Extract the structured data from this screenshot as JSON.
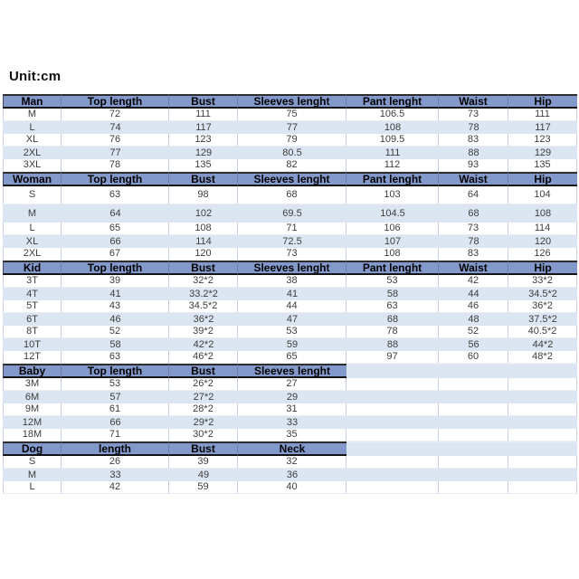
{
  "page": {
    "unit_label": "Unit:cm"
  },
  "colors": {
    "header_bg": "#8399cb",
    "stripe_bg": "#dbe6f2",
    "cell_border": "#c6cfdf",
    "header_text": "#000000",
    "data_text": "#3d3d3d"
  },
  "chart_data": [
    {
      "type": "table",
      "name": "Man",
      "columns": [
        "Man",
        "Top length",
        "Bust",
        "Sleeves lenght",
        "Pant lenght",
        "Waist",
        "Hip"
      ],
      "rows": [
        [
          "M",
          "72",
          "111",
          "75",
          "106.5",
          "73",
          "111"
        ],
        [
          "L",
          "74",
          "117",
          "77",
          "108",
          "78",
          "117"
        ],
        [
          "XL",
          "76",
          "123",
          "79",
          "109.5",
          "83",
          "123"
        ],
        [
          "2XL",
          "77",
          "129",
          "80.5",
          "111",
          "88",
          "129"
        ],
        [
          "3XL",
          "78",
          "135",
          "82",
          "112",
          "93",
          "135"
        ]
      ]
    },
    {
      "type": "table",
      "name": "Woman",
      "columns": [
        "Woman",
        "Top length",
        "Bust",
        "Sleeves lenght",
        "Pant lenght",
        "Waist",
        "Hip"
      ],
      "rows": [
        [
          "S",
          "63",
          "98",
          "68",
          "103",
          "64",
          "104"
        ],
        [
          "M",
          "64",
          "102",
          "69.5",
          "104.5",
          "68",
          "108"
        ],
        [
          "L",
          "65",
          "108",
          "71",
          "106",
          "73",
          "114"
        ],
        [
          "XL",
          "66",
          "114",
          "72.5",
          "107",
          "78",
          "120"
        ],
        [
          "2XL",
          "67",
          "120",
          "73",
          "108",
          "83",
          "126"
        ]
      ]
    },
    {
      "type": "table",
      "name": "Kid",
      "columns": [
        "Kid",
        "Top length",
        "Bust",
        "Sleeves lenght",
        "Pant lenght",
        "Waist",
        "Hip"
      ],
      "rows": [
        [
          "3T",
          "39",
          "32*2",
          "38",
          "53",
          "42",
          "33*2"
        ],
        [
          "4T",
          "41",
          "33.2*2",
          "41",
          "58",
          "44",
          "34.5*2"
        ],
        [
          "5T",
          "43",
          "34.5*2",
          "44",
          "63",
          "46",
          "36*2"
        ],
        [
          "6T",
          "46",
          "36*2",
          "47",
          "68",
          "48",
          "37.5*2"
        ],
        [
          "8T",
          "52",
          "39*2",
          "53",
          "78",
          "52",
          "40.5*2"
        ],
        [
          "10T",
          "58",
          "42*2",
          "59",
          "88",
          "56",
          "44*2"
        ],
        [
          "12T",
          "63",
          "46*2",
          "65",
          "97",
          "60",
          "48*2"
        ]
      ]
    },
    {
      "type": "table",
      "name": "Baby",
      "columns": [
        "Baby",
        "Top length",
        "Bust",
        "Sleeves lenght"
      ],
      "rows": [
        [
          "3M",
          "53",
          "26*2",
          "27"
        ],
        [
          "6M",
          "57",
          "27*2",
          "29"
        ],
        [
          "9M",
          "61",
          "28*2",
          "31"
        ],
        [
          "12M",
          "66",
          "29*2",
          "33"
        ],
        [
          "18M",
          "71",
          "30*2",
          "35"
        ]
      ]
    },
    {
      "type": "table",
      "name": "Dog",
      "columns": [
        "Dog",
        "length",
        "Bust",
        "Neck"
      ],
      "rows": [
        [
          "S",
          "26",
          "39",
          "32"
        ],
        [
          "M",
          "33",
          "49",
          "36"
        ],
        [
          "L",
          "42",
          "59",
          "40"
        ]
      ]
    }
  ]
}
